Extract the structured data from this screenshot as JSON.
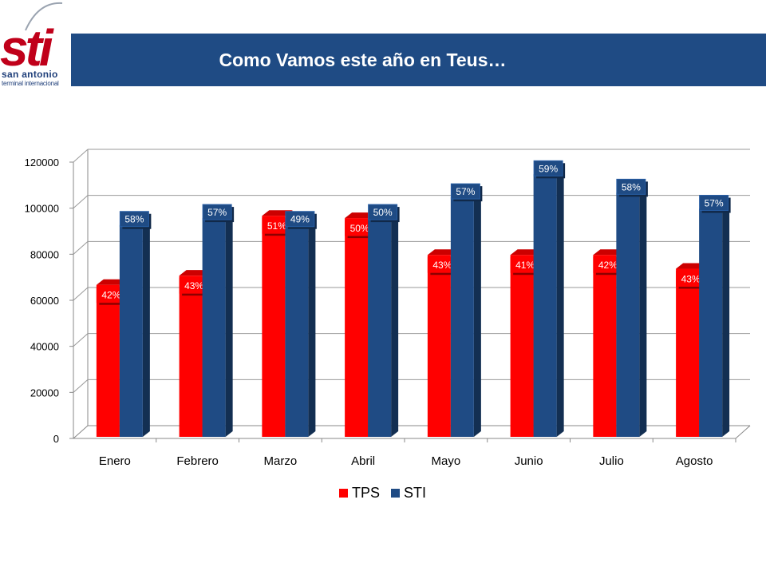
{
  "header": {
    "title": "Como Vamos este año en Teus…",
    "logo_text": "sti",
    "logo_sub1": "san antonio",
    "logo_sub2": "terminal internacional",
    "banner_color": "#1f4b84"
  },
  "chart_data": {
    "type": "bar",
    "style": "3d-clustered-column",
    "categories": [
      "Enero",
      "Febrero",
      "Marzo",
      "Abril",
      "Mayo",
      "Junio",
      "Julio",
      "Agosto"
    ],
    "series": [
      {
        "name": "TPS",
        "color": "#ff0000",
        "values": [
          66000,
          70000,
          96000,
          95000,
          79000,
          79000,
          79000,
          73000
        ],
        "labels": [
          "42%",
          "43%",
          "51%",
          "50%",
          "43%",
          "41%",
          "42%",
          "43%"
        ]
      },
      {
        "name": "STI",
        "color": "#1f4b84",
        "values": [
          92000,
          95000,
          92000,
          95000,
          104000,
          114000,
          106000,
          99000
        ],
        "labels": [
          "58%",
          "57%",
          "49%",
          "50%",
          "57%",
          "59%",
          "58%",
          "57%"
        ]
      }
    ],
    "yticks": [
      "0",
      "20000",
      "40000",
      "60000",
      "80000",
      "100000",
      "120000"
    ],
    "ylim": [
      0,
      120000
    ],
    "grid": true,
    "legend": "bottom"
  }
}
